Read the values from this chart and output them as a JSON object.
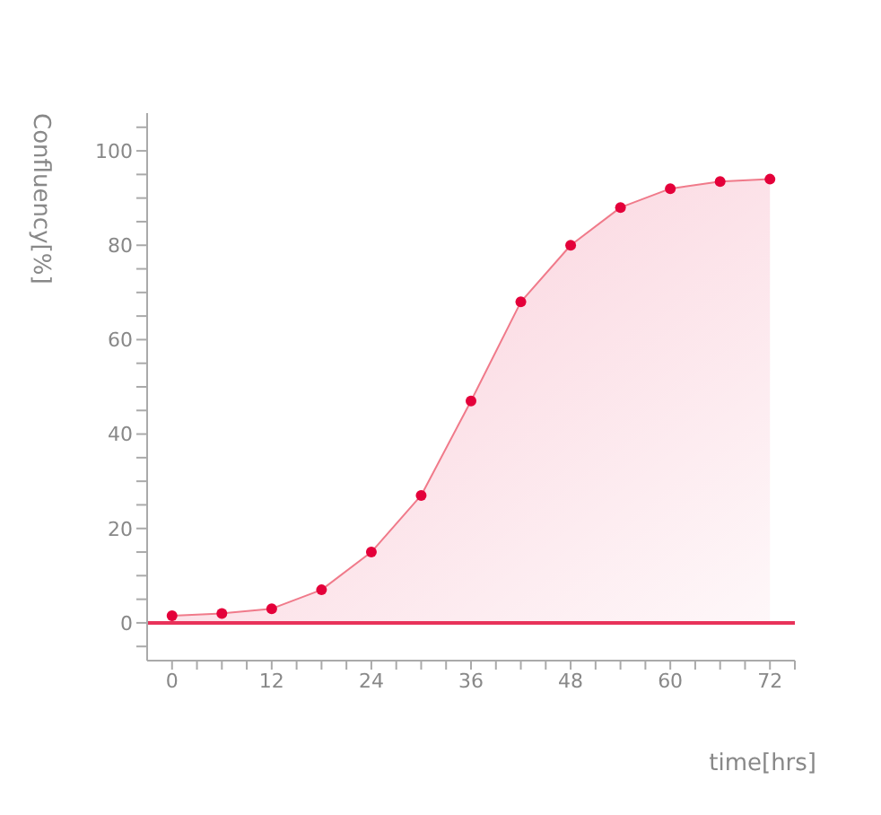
{
  "chart_data": {
    "type": "area",
    "xlabel": "time[hrs]",
    "ylabel": "Confluency[%]",
    "x": [
      0,
      6,
      12,
      18,
      24,
      30,
      36,
      42,
      48,
      54,
      60,
      66,
      72
    ],
    "series": [
      {
        "color": "#e4003a",
        "values": [
          1.5,
          2,
          3,
          7,
          15,
          27,
          47,
          68,
          80,
          88,
          92,
          93.5,
          94
        ]
      }
    ],
    "xlim": [
      -3,
      75
    ],
    "ylim": [
      -8,
      108
    ],
    "xticks": [
      0,
      {
        "value": 3,
        "label": null
      },
      {
        "value": 6,
        "label": null
      },
      {
        "value": 9,
        "label": null
      },
      12,
      {
        "value": 15,
        "label": null
      },
      {
        "value": 18,
        "label": null
      },
      {
        "value": 21,
        "label": null
      },
      24,
      {
        "value": 27,
        "label": null
      },
      {
        "value": 30,
        "label": null
      },
      {
        "value": 33,
        "label": null
      },
      36,
      {
        "value": 39,
        "label": null
      },
      {
        "value": 42,
        "label": null
      },
      {
        "value": 45,
        "label": null
      },
      48,
      {
        "value": 51,
        "label": null
      },
      {
        "value": 54,
        "label": null
      },
      {
        "value": 57,
        "label": null
      },
      60,
      {
        "value": 63,
        "label": null
      },
      {
        "value": 66,
        "label": null
      },
      {
        "value": 69,
        "label": null
      },
      72,
      {
        "value": 75,
        "label": null
      }
    ],
    "yticks": [
      {
        "value": -5,
        "label": null
      },
      0,
      {
        "value": 5,
        "label": null
      },
      {
        "value": 10,
        "label": null
      },
      {
        "value": 15,
        "label": null
      },
      20,
      {
        "value": 25,
        "label": null
      },
      {
        "value": 30,
        "label": null
      },
      {
        "value": 35,
        "label": null
      },
      40,
      {
        "value": 45,
        "label": null
      },
      {
        "value": 50,
        "label": null
      },
      {
        "value": 55,
        "label": null
      },
      60,
      {
        "value": 65,
        "label": null
      },
      {
        "value": 70,
        "label": null
      },
      {
        "value": 75,
        "label": null
      },
      80,
      {
        "value": 85,
        "label": null
      },
      {
        "value": 90,
        "label": null
      },
      {
        "value": 95,
        "label": null
      },
      100,
      {
        "value": 105,
        "label": null
      }
    ],
    "ref_lines": [
      {
        "axis": "y",
        "value": 0,
        "color": "#e8325a"
      }
    ],
    "marker": "circle"
  }
}
